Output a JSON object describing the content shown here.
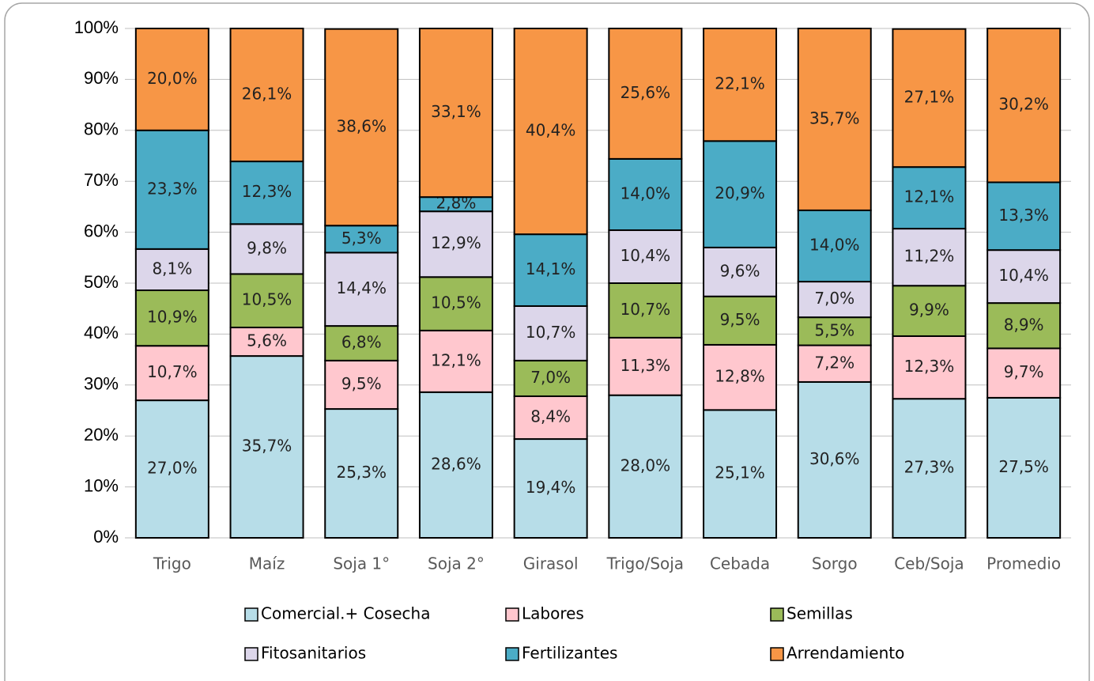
{
  "chart_data": {
    "type": "stacked_bar",
    "categories": [
      "Trigo",
      "Maíz",
      "Soja 1°",
      "Soja 2°",
      "Girasol",
      "Trigo/Soja",
      "Cebada",
      "Sorgo",
      "Ceb/Soja",
      "Promedio"
    ],
    "ylim": [
      0,
      100
    ],
    "yticks": [
      {
        "value": 0,
        "label": "0%"
      },
      {
        "value": 10,
        "label": "10%"
      },
      {
        "value": 20,
        "label": "20%"
      },
      {
        "value": 30,
        "label": "30%"
      },
      {
        "value": 40,
        "label": "40%"
      },
      {
        "value": 50,
        "label": "50%"
      },
      {
        "value": 60,
        "label": "60%"
      },
      {
        "value": 70,
        "label": "70%"
      },
      {
        "value": 80,
        "label": "80%"
      },
      {
        "value": 90,
        "label": "90%"
      },
      {
        "value": 100,
        "label": "100%"
      }
    ],
    "grid": true,
    "legend": "bottom",
    "series": [
      {
        "name": "Comercial.+ Cosecha",
        "color": "#b7dde8",
        "values": [
          27.0,
          35.7,
          25.3,
          28.6,
          19.4,
          28.0,
          25.1,
          30.6,
          27.3,
          27.5
        ],
        "value_labels": [
          "27,0%",
          "35,7%",
          "25,3%",
          "28,6%",
          "19,4%",
          "28,0%",
          "25,1%",
          "30,6%",
          "27,3%",
          "27,5%"
        ]
      },
      {
        "name": "Labores",
        "color": "#ffc7ce",
        "values": [
          10.7,
          5.6,
          9.5,
          12.1,
          8.4,
          11.3,
          12.8,
          7.2,
          12.3,
          9.7
        ],
        "value_labels": [
          "10,7%",
          "5,6%",
          "9,5%",
          "12,1%",
          "8,4%",
          "11,3%",
          "12,8%",
          "7,2%",
          "12,3%",
          "9,7%"
        ]
      },
      {
        "name": "Semillas",
        "color": "#9bbb59",
        "values": [
          10.9,
          10.5,
          6.8,
          10.5,
          7.0,
          10.7,
          9.5,
          5.5,
          9.9,
          8.9
        ],
        "value_labels": [
          "10,9%",
          "10,5%",
          "6,8%",
          "10,5%",
          "7,0%",
          "10,7%",
          "9,5%",
          "5,5%",
          "9,9%",
          "8,9%"
        ]
      },
      {
        "name": "Fitosanitarios",
        "color": "#dcd6ea",
        "values": [
          8.1,
          9.8,
          14.4,
          12.9,
          10.7,
          10.4,
          9.6,
          7.0,
          11.2,
          10.4
        ],
        "value_labels": [
          "8,1%",
          "9,8%",
          "14,4%",
          "12,9%",
          "10,7%",
          "10,4%",
          "9,6%",
          "7,0%",
          "11,2%",
          "10,4%"
        ]
      },
      {
        "name": "Fertilizantes",
        "color": "#4bacc6",
        "values": [
          23.3,
          12.3,
          5.3,
          2.8,
          14.1,
          14.0,
          20.9,
          14.0,
          12.1,
          13.3
        ],
        "value_labels": [
          "23,3%",
          "12,3%",
          "5,3%",
          "2,8%",
          "14,1%",
          "14,0%",
          "20,9%",
          "14,0%",
          "12,1%",
          "13,3%"
        ]
      },
      {
        "name": "Arrendamiento",
        "color": "#f79646",
        "values": [
          20.0,
          26.1,
          38.6,
          33.1,
          40.4,
          25.6,
          22.1,
          35.7,
          27.1,
          30.2
        ],
        "value_labels": [
          "20,0%",
          "26,1%",
          "38,6%",
          "33,1%",
          "40,4%",
          "25,6%",
          "22,1%",
          "35,7%",
          "27,1%",
          "30,2%"
        ]
      }
    ]
  }
}
